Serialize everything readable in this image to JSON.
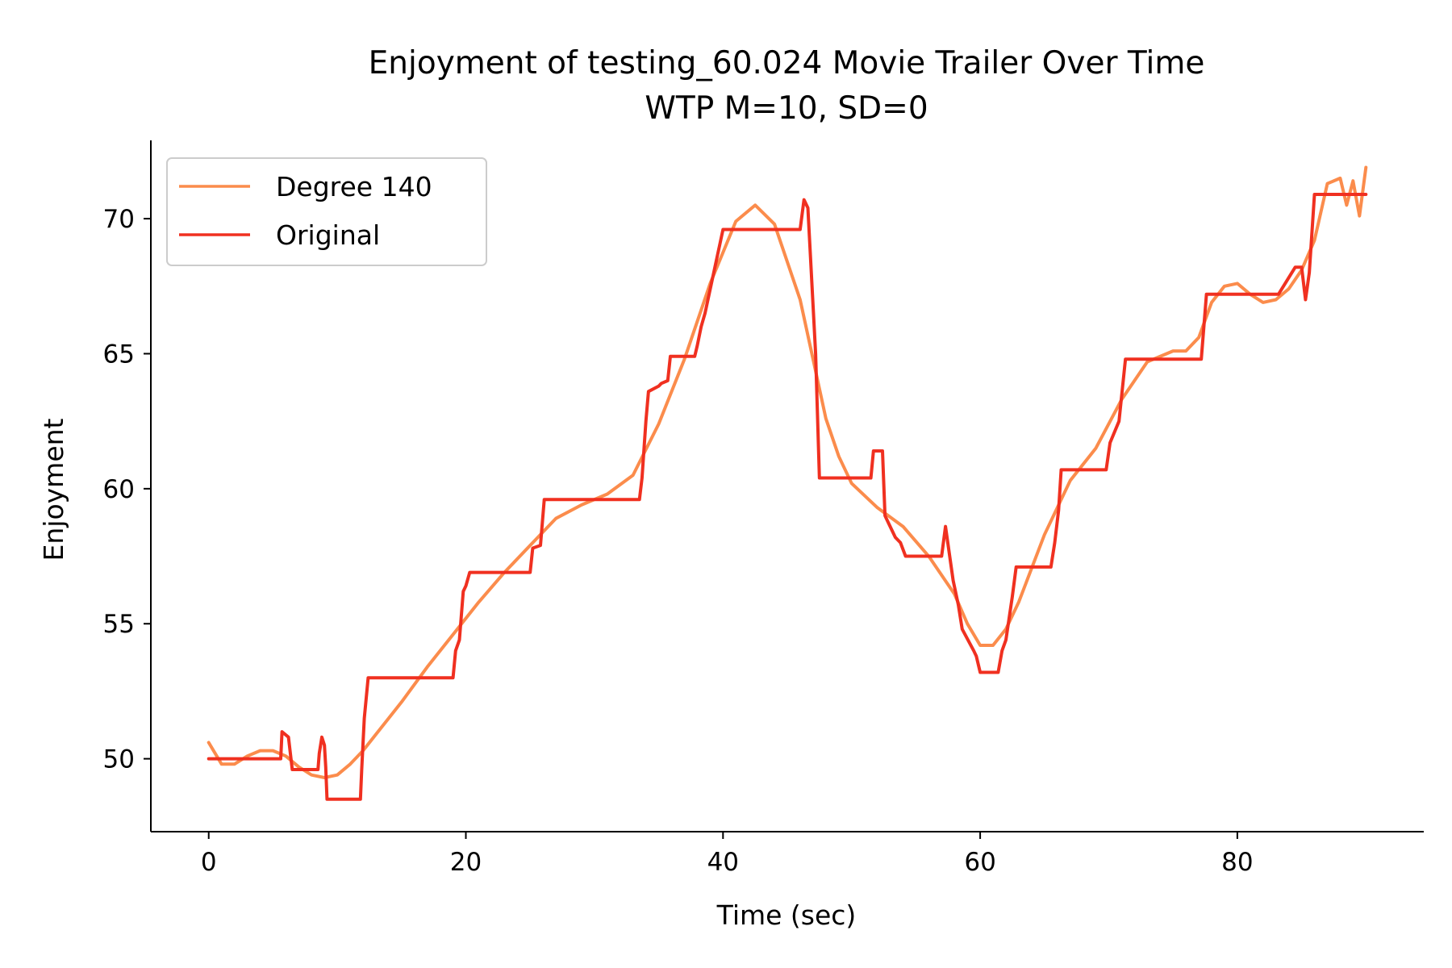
{
  "chart_data": {
    "type": "line",
    "title": "Enjoyment of testing_60.024 Movie Trailer Over Time",
    "subtitle": "WTP M=10, SD=0",
    "xlabel": "Time (sec)",
    "ylabel": "Enjoyment",
    "xlim": [
      -4.5,
      94.5
    ],
    "ylim": [
      47.3,
      72.9
    ],
    "xticks": [
      0,
      20,
      40,
      60,
      80
    ],
    "yticks": [
      50,
      55,
      60,
      65,
      70
    ],
    "xtick_labels": [
      "0",
      "20",
      "40",
      "60",
      "80"
    ],
    "ytick_labels": [
      "50",
      "55",
      "60",
      "65",
      "70"
    ],
    "grid": false,
    "legend_position": "top-left",
    "series": [
      {
        "name": "Degree 140",
        "color": "#fb8c4c",
        "x": [
          0,
          1,
          2,
          3,
          4,
          5,
          6,
          7,
          8,
          9,
          10,
          11,
          12,
          13,
          15,
          17,
          19,
          21,
          23,
          25,
          27,
          29,
          31,
          33,
          35,
          37,
          39,
          41,
          42.5,
          44,
          46,
          47,
          48,
          49,
          50,
          52,
          54,
          56,
          58,
          59,
          60,
          61,
          62,
          63,
          65,
          67,
          69,
          71,
          73,
          75,
          76,
          77,
          78,
          79,
          80,
          81,
          82,
          83,
          84,
          85,
          86,
          87,
          88,
          88.5,
          89,
          89.5,
          90
        ],
        "values": [
          50.6,
          49.8,
          49.8,
          50.1,
          50.3,
          50.3,
          50.1,
          49.7,
          49.4,
          49.3,
          49.4,
          49.8,
          50.3,
          50.9,
          52.1,
          53.4,
          54.6,
          55.8,
          56.9,
          57.9,
          58.9,
          59.4,
          59.8,
          60.5,
          62.4,
          64.8,
          67.6,
          69.9,
          70.5,
          69.8,
          67.0,
          64.8,
          62.6,
          61.2,
          60.2,
          59.3,
          58.6,
          57.5,
          56.1,
          55.0,
          54.2,
          54.2,
          54.8,
          55.8,
          58.3,
          60.3,
          61.5,
          63.3,
          64.7,
          65.1,
          65.1,
          65.6,
          66.9,
          67.5,
          67.6,
          67.2,
          66.9,
          67.0,
          67.4,
          68.1,
          69.2,
          71.3,
          71.5,
          70.5,
          71.4,
          70.1,
          71.9
        ]
      },
      {
        "name": "Original",
        "color": "#f03020",
        "x": [
          0,
          5.6,
          5.7,
          6.2,
          6.5,
          8.5,
          8.6,
          8.8,
          9.0,
          9.1,
          9.2,
          11.8,
          11.9,
          12.1,
          12.4,
          19.0,
          19.2,
          19.5,
          19.8,
          20.0,
          20.3,
          25.0,
          25.2,
          25.8,
          26.1,
          33.5,
          33.7,
          34.0,
          34.2,
          35.0,
          35.2,
          35.7,
          35.9,
          37.8,
          38.0,
          38.3,
          38.6,
          40.0,
          40.2,
          46.0,
          46.3,
          46.6,
          47.2,
          47.5,
          51.5,
          51.7,
          52.4,
          52.6,
          52.9,
          53.4,
          53.8,
          54.2,
          54.6,
          57.0,
          57.3,
          57.9,
          58.3,
          58.6,
          59.5,
          59.7,
          60.0,
          60.2,
          61.4,
          61.7,
          62.0,
          62.5,
          62.8,
          63.3,
          65.5,
          65.8,
          66.1,
          66.3,
          66.8,
          69.8,
          70.1,
          70.8,
          71.3,
          74.5,
          74.8,
          77.2,
          77.6,
          83.0,
          83.2,
          84.5,
          84.7,
          85.0,
          85.3,
          85.6,
          86.0,
          90
        ],
        "values": [
          50.0,
          50.0,
          51.0,
          50.8,
          49.6,
          49.6,
          50.2,
          50.8,
          50.5,
          49.7,
          48.5,
          48.5,
          49.6,
          51.5,
          53.0,
          53.0,
          54.0,
          54.4,
          56.2,
          56.4,
          56.9,
          56.9,
          57.8,
          57.9,
          59.6,
          59.6,
          60.4,
          62.5,
          63.6,
          63.8,
          63.9,
          64.0,
          64.9,
          64.9,
          65.3,
          66.0,
          66.5,
          69.6,
          69.6,
          69.6,
          70.7,
          70.4,
          65.0,
          60.4,
          60.4,
          61.4,
          61.4,
          59.0,
          58.7,
          58.2,
          58.0,
          57.5,
          57.5,
          57.5,
          58.6,
          56.6,
          55.7,
          54.8,
          54.0,
          53.8,
          53.2,
          53.2,
          53.2,
          54.0,
          54.4,
          56.0,
          57.1,
          57.1,
          57.1,
          58.0,
          59.2,
          60.7,
          60.7,
          60.7,
          61.7,
          62.5,
          64.8,
          64.8,
          64.8,
          64.8,
          67.2,
          67.2,
          67.2,
          68.2,
          68.2,
          68.2,
          67.0,
          68.0,
          70.9,
          70.9
        ]
      }
    ]
  }
}
